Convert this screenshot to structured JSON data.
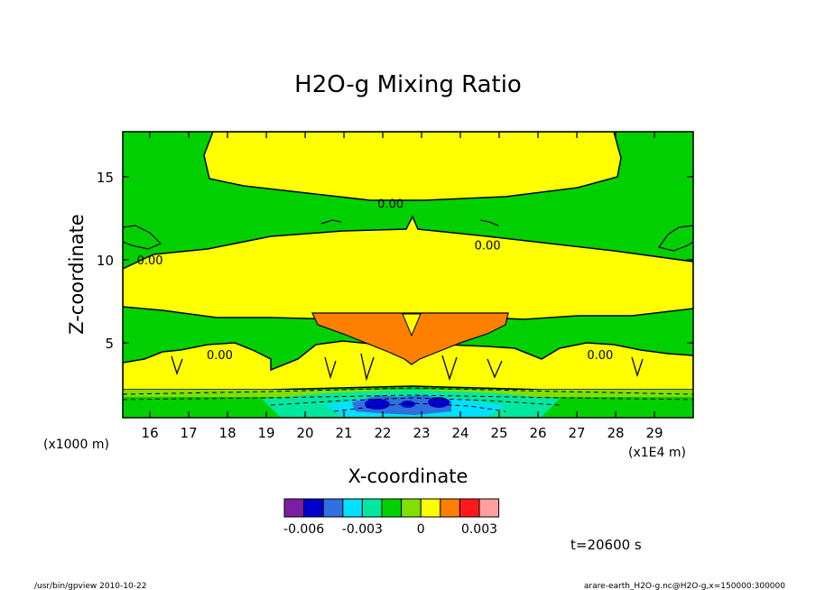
{
  "chart_data": {
    "type": "heatmap",
    "title": "H2O-g Mixing Ratio",
    "xlabel": "X-coordinate",
    "ylabel": "Z-coordinate",
    "x_scale_label": "(x1E4 m)",
    "y_scale_label": "(x1000 m)",
    "xlim": [
      15.3,
      30.0
    ],
    "ylim": [
      0.5,
      17.7
    ],
    "x_ticks": [
      16,
      17,
      18,
      19,
      20,
      21,
      22,
      23,
      24,
      25,
      26,
      27,
      28,
      29
    ],
    "y_ticks": [
      5,
      10,
      15
    ],
    "contour_labels": [
      {
        "text": "0.00",
        "x": 22.2,
        "y": 13.4
      },
      {
        "text": "0.00",
        "x": 24.7,
        "y": 10.9
      },
      {
        "text": "0.00",
        "x": 16.0,
        "y": 10.0
      },
      {
        "text": "0.00",
        "x": 17.8,
        "y": 4.3
      },
      {
        "text": "0.00",
        "x": 27.6,
        "y": 4.3
      }
    ],
    "colorbar": {
      "colors": [
        "#7a1fa2",
        "#0000d0",
        "#2f6fe0",
        "#00e0ff",
        "#00e8a0",
        "#00d000",
        "#7fe000",
        "#ffff00",
        "#ff8000",
        "#ff1a1a",
        "#ff9f9f"
      ],
      "tick_labels": [
        "-0.006",
        "-0.003",
        "0",
        "0.003"
      ],
      "tick_values": [
        -0.006,
        -0.003,
        0,
        0.003
      ]
    },
    "time_label": "t=20600 s",
    "grid": false
  },
  "footer": {
    "left": "/usr/bin/gpview   2010-10-22",
    "right": "arare-earth_H2O-g.nc@H2O-g,x=150000:300000"
  }
}
